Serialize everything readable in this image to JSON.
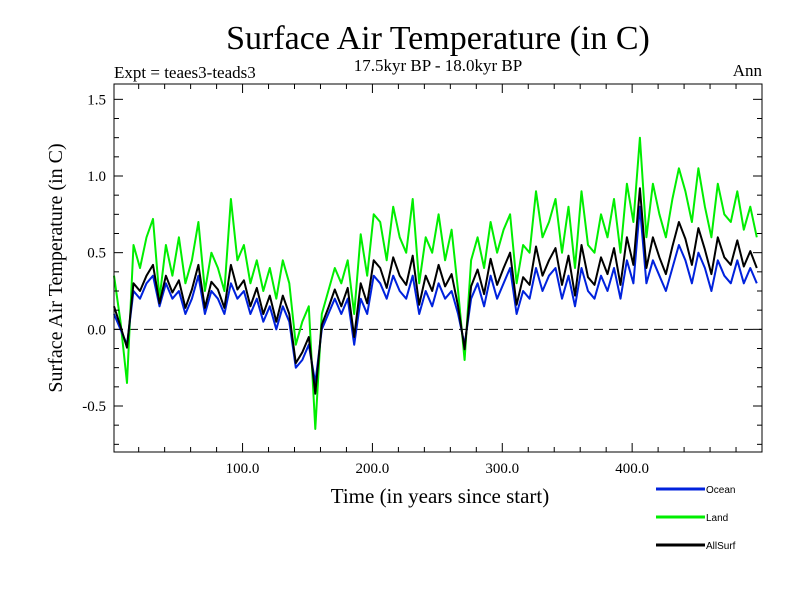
{
  "chart_data": {
    "type": "line",
    "title": "Surface Air Temperature (in C)",
    "subtitle": "17.5kyr BP - 18.0kyr BP",
    "left_label": "Expt = teaes3-teads3",
    "right_label": "Ann",
    "xlabel": "Time (in years since start)",
    "ylabel": "Surface Air Temperature (in C)",
    "xlim": [
      1,
      500
    ],
    "ylim": [
      -0.8,
      1.6
    ],
    "x_ticks": [
      100,
      200,
      300,
      400
    ],
    "x_tick_labels": [
      "100.0",
      "200.0",
      "300.0",
      "400.0"
    ],
    "y_ticks": [
      -0.5,
      0.0,
      0.5,
      1.0,
      1.5
    ],
    "y_tick_labels": [
      "-0.5",
      "0.0",
      "0.5",
      "1.0",
      "1.5"
    ],
    "zero_line": true,
    "series": [
      {
        "name": "Land",
        "color": "#00ee00",
        "x_start": 1,
        "x_step": 5,
        "values": [
          0.35,
          0.05,
          -0.35,
          0.55,
          0.4,
          0.6,
          0.72,
          0.2,
          0.55,
          0.35,
          0.6,
          0.3,
          0.45,
          0.7,
          0.25,
          0.5,
          0.4,
          0.25,
          0.85,
          0.45,
          0.55,
          0.3,
          0.45,
          0.25,
          0.4,
          0.2,
          0.45,
          0.3,
          -0.1,
          0.05,
          0.15,
          -0.65,
          0.1,
          0.25,
          0.4,
          0.3,
          0.45,
          0.1,
          0.62,
          0.35,
          0.75,
          0.7,
          0.45,
          0.8,
          0.6,
          0.5,
          0.85,
          0.3,
          0.6,
          0.5,
          0.75,
          0.45,
          0.65,
          0.25,
          -0.2,
          0.45,
          0.6,
          0.4,
          0.7,
          0.5,
          0.65,
          0.75,
          0.3,
          0.55,
          0.5,
          0.9,
          0.6,
          0.7,
          0.85,
          0.5,
          0.8,
          0.4,
          0.9,
          0.55,
          0.5,
          0.75,
          0.6,
          0.85,
          0.5,
          0.95,
          0.7,
          1.25,
          0.6,
          0.95,
          0.75,
          0.6,
          0.85,
          1.05,
          0.9,
          0.7,
          1.05,
          0.8,
          0.6,
          0.95,
          0.75,
          0.7,
          0.9,
          0.65,
          0.8,
          0.6
        ]
      },
      {
        "name": "Ocean",
        "color": "#0022dd",
        "x_start": 1,
        "x_step": 5,
        "values": [
          0.1,
          0.0,
          -0.1,
          0.25,
          0.2,
          0.3,
          0.35,
          0.15,
          0.3,
          0.2,
          0.25,
          0.1,
          0.2,
          0.35,
          0.1,
          0.25,
          0.2,
          0.1,
          0.3,
          0.2,
          0.25,
          0.1,
          0.2,
          0.05,
          0.15,
          0.0,
          0.15,
          0.05,
          -0.25,
          -0.2,
          -0.1,
          -0.35,
          0.0,
          0.1,
          0.2,
          0.1,
          0.2,
          -0.1,
          0.2,
          0.1,
          0.35,
          0.3,
          0.2,
          0.35,
          0.25,
          0.2,
          0.35,
          0.1,
          0.25,
          0.15,
          0.3,
          0.2,
          0.25,
          0.1,
          -0.1,
          0.2,
          0.3,
          0.15,
          0.35,
          0.2,
          0.3,
          0.4,
          0.1,
          0.25,
          0.2,
          0.4,
          0.25,
          0.35,
          0.4,
          0.2,
          0.35,
          0.15,
          0.4,
          0.25,
          0.2,
          0.35,
          0.25,
          0.4,
          0.2,
          0.45,
          0.3,
          0.8,
          0.3,
          0.45,
          0.35,
          0.25,
          0.4,
          0.55,
          0.45,
          0.3,
          0.5,
          0.4,
          0.25,
          0.45,
          0.35,
          0.3,
          0.45,
          0.3,
          0.4,
          0.3
        ]
      },
      {
        "name": "AllSurf",
        "color": "#000000",
        "x_start": 1,
        "x_step": 5,
        "values": [
          0.15,
          0.02,
          -0.12,
          0.3,
          0.25,
          0.35,
          0.42,
          0.17,
          0.35,
          0.24,
          0.32,
          0.14,
          0.26,
          0.42,
          0.14,
          0.31,
          0.26,
          0.14,
          0.42,
          0.26,
          0.32,
          0.15,
          0.27,
          0.1,
          0.22,
          0.05,
          0.22,
          0.1,
          -0.22,
          -0.15,
          -0.05,
          -0.42,
          0.03,
          0.14,
          0.26,
          0.15,
          0.27,
          -0.05,
          0.3,
          0.17,
          0.45,
          0.4,
          0.27,
          0.47,
          0.35,
          0.29,
          0.48,
          0.16,
          0.35,
          0.25,
          0.42,
          0.28,
          0.36,
          0.15,
          -0.13,
          0.28,
          0.39,
          0.23,
          0.46,
          0.29,
          0.4,
          0.5,
          0.16,
          0.34,
          0.29,
          0.54,
          0.35,
          0.45,
          0.53,
          0.29,
          0.48,
          0.22,
          0.55,
          0.34,
          0.29,
          0.47,
          0.36,
          0.53,
          0.29,
          0.6,
          0.42,
          0.92,
          0.4,
          0.6,
          0.47,
          0.36,
          0.54,
          0.7,
          0.59,
          0.42,
          0.66,
          0.52,
          0.36,
          0.6,
          0.47,
          0.42,
          0.58,
          0.41,
          0.51,
          0.4
        ]
      }
    ],
    "legend": [
      {
        "label": "Ocean",
        "color": "#0022dd"
      },
      {
        "label": "Land",
        "color": "#00ee00"
      },
      {
        "label": "AllSurf",
        "color": "#000000"
      }
    ],
    "legend_position": "bottom-right"
  }
}
